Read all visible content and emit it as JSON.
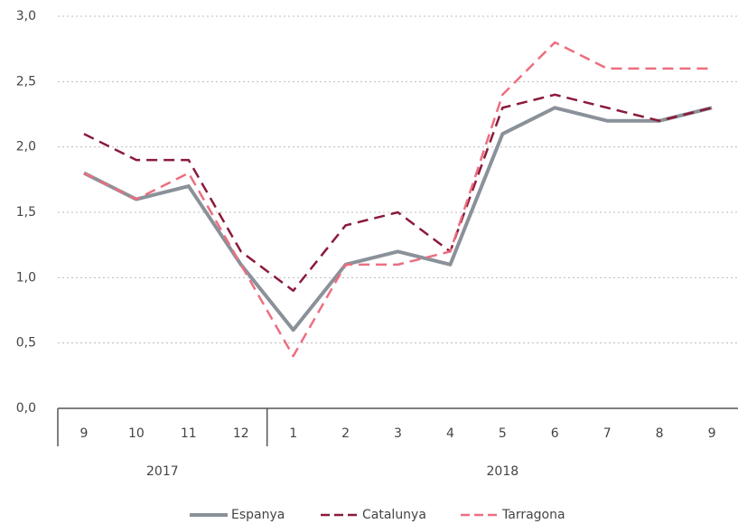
{
  "chart_data": {
    "type": "line",
    "categories": [
      "9",
      "10",
      "11",
      "12",
      "1",
      "2",
      "3",
      "4",
      "5",
      "6",
      "7",
      "8",
      "9"
    ],
    "x_groups": [
      {
        "label": "2017",
        "count": 4
      },
      {
        "label": "2018",
        "count": 9
      }
    ],
    "series": [
      {
        "name": "Espanya",
        "color": "#8a9199",
        "dash": "solid",
        "values": [
          1.8,
          1.6,
          1.7,
          1.1,
          0.6,
          1.1,
          1.2,
          1.1,
          2.1,
          2.3,
          2.2,
          2.2,
          2.3
        ]
      },
      {
        "name": "Catalunya",
        "color": "#8b1a3a",
        "dash": "dashed",
        "values": [
          2.1,
          1.9,
          1.9,
          1.2,
          0.9,
          1.4,
          1.5,
          1.2,
          2.3,
          2.4,
          2.3,
          2.2,
          2.3
        ]
      },
      {
        "name": "Tarragona",
        "color": "#ec6e80",
        "dash": "dashed",
        "values": [
          1.8,
          1.6,
          1.8,
          1.1,
          0.4,
          1.1,
          1.1,
          1.2,
          2.4,
          2.8,
          2.6,
          2.6,
          2.6
        ]
      }
    ],
    "ylim": [
      0,
      3
    ],
    "yticks": [
      {
        "value": 0,
        "label": "0,0"
      },
      {
        "value": 0.5,
        "label": "0,5"
      },
      {
        "value": 1,
        "label": "1,0"
      },
      {
        "value": 1.5,
        "label": "1,5"
      },
      {
        "value": 2,
        "label": "2,0"
      },
      {
        "value": 2.5,
        "label": "2,5"
      },
      {
        "value": 3,
        "label": "3,0"
      }
    ],
    "grid": true,
    "legend": "bottom"
  }
}
